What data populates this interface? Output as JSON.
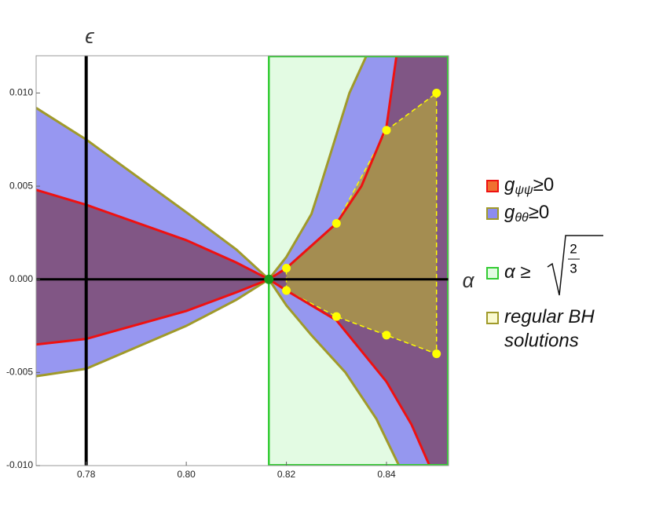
{
  "chart_data": {
    "type": "region",
    "x_label": "α",
    "y_label": "ϵ",
    "xlim": [
      0.77,
      0.8524
    ],
    "ylim": [
      -0.01,
      0.012
    ],
    "xticks": [
      0.78,
      {
        "value": 0.8,
        "label": "0.80"
      },
      0.82,
      0.84
    ],
    "yticks": [
      {
        "value": -0.01,
        "label": "-0.010"
      },
      -0.005,
      {
        "value": 0,
        "label": "0.000"
      },
      0.005,
      {
        "value": 0.01,
        "label": "0.010"
      }
    ],
    "axes_origin": [
      0.78,
      0
    ],
    "alpha_min": 0.8165,
    "band_color": "#33cc33",
    "point_color": "#1a9a1a",
    "regions": [
      {
        "color": "#8c8cf0",
        "boundary_color": "#a09a2a",
        "curves": [
          {
            "x": [
              0.77,
              0.78,
              0.8,
              0.81,
              0.8165
            ],
            "y": [
              0.0092,
              0.0075,
              0.0036,
              0.0016,
              0
            ]
          },
          {
            "x": [
              0.77,
              0.78,
              0.8,
              0.81,
              0.8165
            ],
            "y": [
              -0.0052,
              -0.0048,
              -0.0025,
              -0.0011,
              0
            ]
          },
          {
            "x": [
              0.8165,
              0.82,
              0.825,
              0.8268,
              0.8326,
              0.836
            ],
            "y": [
              0,
              0.0012,
              0.0035,
              0.005,
              0.01,
              0.012
            ]
          },
          {
            "x": [
              0.8165,
              0.82,
              0.825,
              0.8318,
              0.838,
              0.8425
            ],
            "y": [
              0,
              -0.0014,
              -0.003,
              -0.005,
              -0.0075,
              -0.01
            ]
          }
        ]
      },
      {
        "color": "#7c4a72",
        "boundary_color": "#ee1111",
        "curves": [
          {
            "x": [
              0.77,
              0.78,
              0.8,
              0.81,
              0.8165
            ],
            "y": [
              0.0048,
              0.004,
              0.0021,
              0.0009,
              0
            ]
          },
          {
            "x": [
              0.77,
              0.78,
              0.8,
              0.81,
              0.8165
            ],
            "y": [
              -0.0035,
              -0.0032,
              -0.0017,
              -0.0007,
              0
            ]
          },
          {
            "x": [
              0.8165,
              0.82,
              0.83,
              0.835,
              0.84,
              0.842
            ],
            "y": [
              0,
              0.0006,
              0.003,
              0.005,
              0.0082,
              0.012
            ]
          },
          {
            "x": [
              0.8165,
              0.82,
              0.83,
              0.84,
              0.845,
              0.8486
            ],
            "y": [
              0,
              -0.0006,
              -0.0022,
              -0.0055,
              -0.0078,
              -0.01
            ]
          }
        ]
      }
    ],
    "solutions": {
      "color": "#ffff00",
      "fill": "#b0a040",
      "x": [
        0.82,
        0.83,
        0.84,
        0.85,
        0.85,
        0.84,
        0.83,
        0.82
      ],
      "y": [
        0.0006,
        0.003,
        0.008,
        0.01,
        -0.004,
        -0.003,
        -0.002,
        -0.0006
      ]
    },
    "legend": [
      {
        "label": "g",
        "sub": "ψψ",
        "suffix": "≥0",
        "color": "#f07030",
        "border": "#ee1111"
      },
      {
        "label": "g",
        "sub": "θθ",
        "suffix": "≥0",
        "color": "#8c8cf0",
        "border": "#a09a2a"
      },
      {
        "label": "α ≥",
        "num": "2",
        "den": "3",
        "color": "#e3fbe3",
        "border": "#33cc33"
      },
      {
        "label": "regular BH",
        "label2": "solutions",
        "color": "#fafad0",
        "border": "#a09a2a"
      }
    ]
  }
}
